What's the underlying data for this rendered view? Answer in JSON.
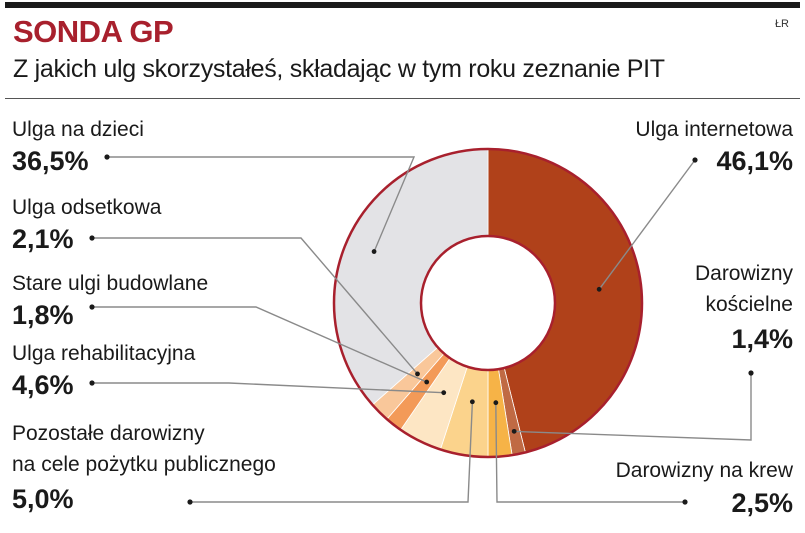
{
  "header": {
    "title": "SONDA GP",
    "subtitle": "Z jakich ulg skorzystałeś, składając w tym roku zeznanie PIT",
    "source": "ŁR"
  },
  "colors": {
    "title": "#a8202d",
    "ring_outline": "#a8202d"
  },
  "chart_data": {
    "type": "pie",
    "variant": "donut",
    "categories": [
      "Ulga internetowa",
      "Darowizny kościelne",
      "Darowizny na krew",
      "Pozostałe darowizny na cele pożytku publicznego",
      "Ulga rehabilitacyjna",
      "Stare ulgi budowlane",
      "Ulga odsetkowa",
      "Ulga na dzieci"
    ],
    "values": [
      46.1,
      1.4,
      2.5,
      5.0,
      4.6,
      1.8,
      2.1,
      36.5
    ],
    "value_labels": [
      "46,1%",
      "1,4%",
      "2,5%",
      "5,0%",
      "4,6%",
      "1,8%",
      "2,1%",
      "36,5%"
    ],
    "label_lines": [
      [
        "Ulga internetowa"
      ],
      [
        "Darowizny",
        "kościelne"
      ],
      [
        "Darowizny na krew"
      ],
      [
        "Pozostałe darowizny",
        "na cele pożytku publicznego"
      ],
      [
        "Ulga rehabilitacyjna"
      ],
      [
        "Stare ulgi budowlane"
      ],
      [
        "Ulga odsetkowa"
      ],
      [
        "Ulga na dzieci"
      ]
    ],
    "colors": [
      "#b0411a",
      "#c06a44",
      "#f6b347",
      "#fbd38c",
      "#fde6c4",
      "#f39a58",
      "#f9c79a",
      "#e3e3e6"
    ],
    "start": "12 o'clock",
    "direction": "clockwise"
  }
}
